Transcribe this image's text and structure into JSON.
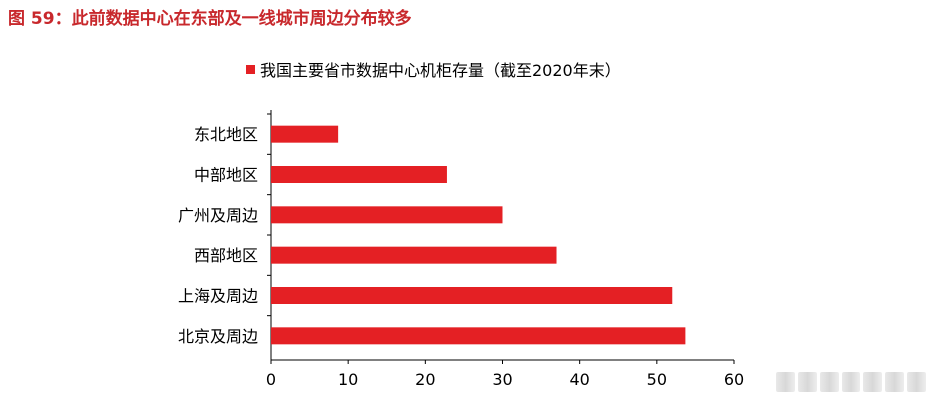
{
  "figure_title": "图 59：此前数据中心在东部及一线城市周边分布较多",
  "colors": {
    "title": "#c8282c",
    "bar": "#e42024",
    "axis": "#000000"
  },
  "chart_data": {
    "type": "bar",
    "orientation": "horizontal",
    "title": "",
    "legend": {
      "position": "top",
      "entries": [
        "我国主要省市数据中心机柜存量（截至2020年末）"
      ]
    },
    "series": [
      {
        "name": "我国主要省市数据中心机柜存量（截至2020年末）",
        "values": [
          8.7,
          22.8,
          30.0,
          37.0,
          52.0,
          53.7
        ]
      }
    ],
    "categories": [
      "东北地区",
      "中部地区",
      "广州及周边",
      "西部地区",
      "上海及周边",
      "北京及周边"
    ],
    "xlim": [
      0,
      60
    ],
    "xticks": [
      0,
      10,
      20,
      30,
      40,
      50,
      60
    ],
    "xlabel": "",
    "ylabel": "",
    "grid": false
  }
}
